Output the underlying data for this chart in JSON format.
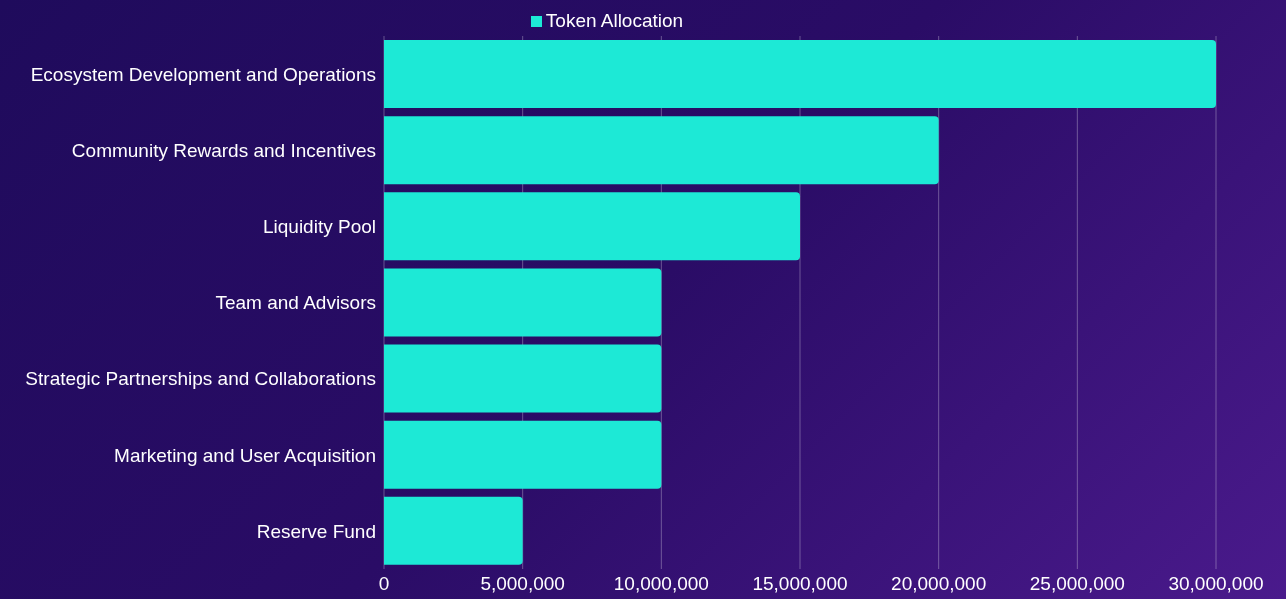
{
  "chart_data": {
    "type": "bar",
    "orientation": "horizontal",
    "categories": [
      "Ecosystem Development and Operations",
      "Community Rewards and Incentives",
      "Liquidity Pool",
      "Team and Advisors",
      "Strategic Partnerships and Collaborations",
      "Marketing and User Acquisition",
      "Reserve Fund"
    ],
    "series": [
      {
        "name": "Token Allocation",
        "color": "#1de9d6",
        "values": [
          30000000,
          20000000,
          15000000,
          10000000,
          10000000,
          10000000,
          5000000
        ]
      }
    ],
    "xlim": [
      0,
      30000000
    ],
    "xticks": [
      0,
      {
        "value": 5000000,
        "label": "5,000,000"
      },
      {
        "value": 10000000,
        "label": "10,000,000"
      },
      {
        "value": 15000000,
        "label": "15,000,000"
      },
      {
        "value": 20000000,
        "label": "20,000,000"
      },
      {
        "value": 25000000,
        "label": "25,000,000"
      },
      {
        "value": 30000000,
        "label": "30,000,000"
      }
    ],
    "grid": "x",
    "legend": "top"
  }
}
